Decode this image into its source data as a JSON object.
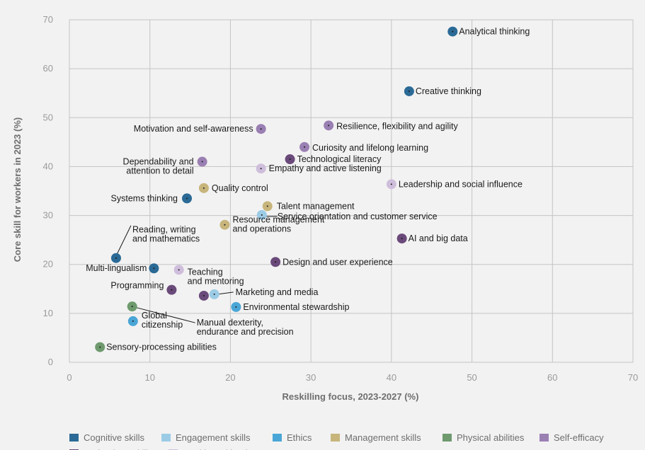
{
  "chart_data": {
    "type": "scatter",
    "xlabel": "Reskilling focus, 2023-2027 (%)",
    "ylabel": "Core skill for workers in 2023 (%)",
    "xlim": [
      0,
      70
    ],
    "ylim": [
      0,
      70
    ],
    "xticks": [
      0,
      10,
      20,
      30,
      40,
      50,
      60,
      70
    ],
    "yticks": [
      0,
      10,
      20,
      30,
      40,
      50,
      60,
      70
    ],
    "grid": true,
    "legend_position": "bottom",
    "categories": [
      {
        "name": "Cognitive skills",
        "color": "#2b6a96"
      },
      {
        "name": "Engagement skills",
        "color": "#9ccbe6"
      },
      {
        "name": "Ethics",
        "color": "#4aa6d6"
      },
      {
        "name": "Management skills",
        "color": "#c7b57c"
      },
      {
        "name": "Physical abilities",
        "color": "#6e9a6e"
      },
      {
        "name": "Self-efficacy",
        "color": "#9a7fb3"
      },
      {
        "name": "Technology skills",
        "color": "#6a4a7a"
      },
      {
        "name": "Working with others",
        "color": "#cfbedb"
      }
    ],
    "points": [
      {
        "label": "Analytical thinking",
        "x": 47.6,
        "y": 67.6,
        "category": "Cognitive skills"
      },
      {
        "label": "Creative thinking",
        "x": 42.2,
        "y": 55.4,
        "category": "Cognitive skills"
      },
      {
        "label": "Resilience, flexibility and agility",
        "x": 32.2,
        "y": 48.4,
        "category": "Self-efficacy"
      },
      {
        "label": "Motivation and self-awareness",
        "x": 23.8,
        "y": 47.7,
        "category": "Self-efficacy"
      },
      {
        "label": "Curiosity and lifelong learning",
        "x": 29.2,
        "y": 44.0,
        "category": "Self-efficacy"
      },
      {
        "label": "Technological literacy",
        "x": 27.4,
        "y": 41.5,
        "category": "Technology skills"
      },
      {
        "label": "Dependability and attention to detail",
        "x": 16.5,
        "y": 41.0,
        "category": "Self-efficacy"
      },
      {
        "label": "Empathy and active listening",
        "x": 23.8,
        "y": 39.6,
        "category": "Working with others"
      },
      {
        "label": "Leadership and social influence",
        "x": 40.0,
        "y": 36.4,
        "category": "Working with others"
      },
      {
        "label": "Quality control",
        "x": 16.7,
        "y": 35.6,
        "category": "Management skills"
      },
      {
        "label": "Systems thinking",
        "x": 14.6,
        "y": 33.5,
        "category": "Cognitive skills"
      },
      {
        "label": "Talent management",
        "x": 24.6,
        "y": 31.9,
        "category": "Management skills"
      },
      {
        "label": "Service orientation and customer service",
        "x": 23.9,
        "y": 30.1,
        "category": "Engagement skills"
      },
      {
        "label": "Resource management and operations",
        "x": 19.3,
        "y": 28.1,
        "category": "Management skills"
      },
      {
        "label": "AI and big data",
        "x": 41.3,
        "y": 25.3,
        "category": "Technology skills"
      },
      {
        "label": "Reading, writing and mathematics",
        "x": 5.8,
        "y": 21.3,
        "category": "Cognitive skills"
      },
      {
        "label": "Design and user experience",
        "x": 25.6,
        "y": 20.5,
        "category": "Technology skills"
      },
      {
        "label": "Multi-lingualism",
        "x": 10.5,
        "y": 19.2,
        "category": "Cognitive skills"
      },
      {
        "label": "Teaching and mentoring",
        "x": 13.6,
        "y": 18.9,
        "category": "Working with others"
      },
      {
        "label": "Programming",
        "x": 12.7,
        "y": 14.8,
        "category": "Technology skills"
      },
      {
        "label": "Marketing and media",
        "x": 16.7,
        "y": 13.6,
        "category": "Technology skills"
      },
      {
        "label": "Marketing and media",
        "x": 18.0,
        "y": 13.9,
        "category": "Engagement skills"
      },
      {
        "label": "Environmental stewardship",
        "x": 20.7,
        "y": 11.3,
        "category": "Ethics"
      },
      {
        "label": "Manual dexterity, endurance and precision",
        "x": 7.8,
        "y": 11.4,
        "category": "Physical abilities"
      },
      {
        "label": "Global citizenship",
        "x": 7.9,
        "y": 8.4,
        "category": "Ethics"
      },
      {
        "label": "Sensory-processing abilities",
        "x": 3.8,
        "y": 3.1,
        "category": "Physical abilities"
      }
    ]
  }
}
